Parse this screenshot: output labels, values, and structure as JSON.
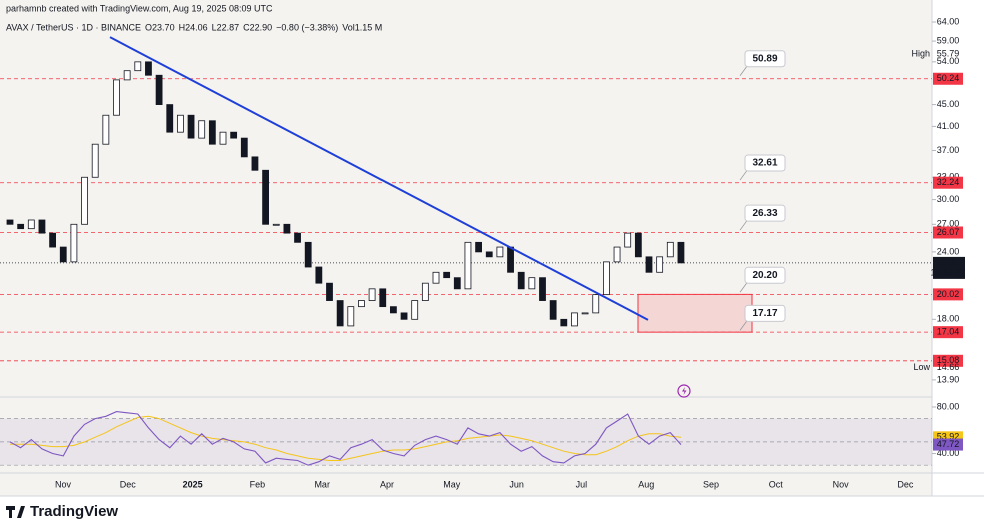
{
  "header": {
    "credit": "parhamnb created with TradingView.com, Aug 19, 2025 08:09 UTC",
    "symbol": "AVAX / TetherUS · 1D · BINANCE",
    "ohlc": [
      "O23.70",
      "H24.06",
      "L22.87",
      "C22.90",
      "−0.80 (−3.38%)",
      "Vol1.15 M"
    ]
  },
  "chart_data": {
    "type": "candlestick",
    "log_scale": true,
    "ylim": [
      13.2,
      66.8
    ],
    "yticks": [
      {
        "value": 64,
        "label": "64.00"
      },
      {
        "value": 59,
        "label": "59.00"
      },
      {
        "value": 54,
        "label": "54.00"
      },
      {
        "value": 45,
        "label": "45.00"
      },
      {
        "value": 41,
        "label": "41.00"
      },
      {
        "value": 37,
        "label": "37.00"
      },
      {
        "value": 33,
        "label": "33.00"
      },
      {
        "value": 30,
        "label": "30.00"
      },
      {
        "value": 27,
        "label": "27.00"
      },
      {
        "value": 24,
        "label": "24.00"
      },
      {
        "value": 18,
        "label": "18.00"
      },
      {
        "value": 13.9,
        "label": "13.90"
      }
    ],
    "categories": [
      "Nov",
      "Dec",
      "2025",
      "Feb",
      "Mar",
      "Apr",
      "May",
      "Jun",
      "Jul",
      "Aug",
      "Sep",
      "Oct",
      "Nov",
      "Dec"
    ],
    "up_color": "#ffffff",
    "down_color": "#131722",
    "open": [
      27.5,
      27,
      26.5,
      27.5,
      26,
      24.5,
      23,
      27,
      33,
      38,
      43,
      50,
      52,
      54,
      51,
      45,
      40,
      43,
      39,
      42,
      38,
      40,
      39,
      36,
      34,
      27,
      27,
      26,
      25,
      22.5,
      21,
      19.5,
      17.5,
      19,
      19.5,
      20.5,
      19,
      18.5,
      18,
      19.5,
      21,
      22,
      21.5,
      20.5,
      25,
      24,
      23.5,
      24.5,
      22,
      20.5,
      21.5,
      19.5,
      18,
      17.5,
      18.5,
      18.5,
      20,
      23,
      24.5,
      26,
      23.5,
      22,
      23.5,
      25
    ],
    "high": {
      "name": "High",
      "value": 55.79,
      "label": "55.79"
    },
    "low": {
      "name": "Low",
      "value": 14.66,
      "label": "14.66"
    },
    "close": [
      27,
      26.5,
      27.5,
      26,
      24.5,
      23,
      27,
      33,
      38,
      43,
      50,
      52,
      54,
      51,
      45,
      40,
      43,
      39,
      42,
      38,
      40,
      39,
      36,
      34,
      27,
      27,
      26,
      25,
      22.5,
      21,
      19.5,
      17.5,
      19,
      19.5,
      20.5,
      19,
      18.5,
      18,
      19.5,
      21,
      22,
      21.5,
      20.5,
      25,
      24,
      23.5,
      24.5,
      22,
      20.5,
      21.5,
      19.5,
      18,
      17.5,
      18.5,
      18.5,
      20,
      23,
      24.5,
      26,
      23.5,
      22,
      23.5,
      25,
      22.9
    ],
    "levels": [
      {
        "value": 50.24,
        "label": "50.24"
      },
      {
        "value": 32.24,
        "label": "32.24"
      },
      {
        "value": 26.07,
        "label": "26.07"
      },
      {
        "value": 20.02,
        "label": "20.02"
      },
      {
        "value": 17.04,
        "label": "17.04"
      },
      {
        "value": 15.08,
        "label": "15.08"
      }
    ],
    "level_color": "#f23645",
    "annotations": [
      {
        "value": 50.89,
        "label": "50.89"
      },
      {
        "value": 32.61,
        "label": "32.61"
      },
      {
        "value": 26.33,
        "label": "26.33"
      },
      {
        "value": 20.2,
        "label": "20.20"
      },
      {
        "value": 17.17,
        "label": "17.17"
      }
    ],
    "trendline": {
      "from": 60,
      "to": 17.96,
      "color": "#1e3fd8"
    },
    "last_price": {
      "value": 22.9,
      "label": "22.90",
      "countdown": "15:50:07"
    },
    "rsi": {
      "ylim": [
        25,
        86
      ],
      "yticks": [
        {
          "value": 80,
          "label": "80.00"
        },
        {
          "value": 40,
          "label": "40.00"
        }
      ],
      "bands": [
        70,
        50,
        30
      ],
      "series": [
        {
          "color": "#7e57c2",
          "label": "47.72",
          "values": [
            50,
            45,
            52,
            44,
            40,
            38,
            55,
            65,
            70,
            72,
            76,
            75,
            74,
            62,
            52,
            45,
            55,
            48,
            57,
            48,
            53,
            50,
            44,
            42,
            32,
            36,
            35,
            34,
            30,
            33,
            38,
            35,
            45,
            48,
            52,
            43,
            40,
            38,
            47,
            52,
            55,
            52,
            48,
            62,
            57,
            55,
            58,
            48,
            42,
            46,
            38,
            33,
            32,
            38,
            40,
            48,
            62,
            68,
            74,
            55,
            48,
            55,
            58,
            47.72
          ]
        },
        {
          "color": "#f5c518",
          "label": "53.92",
          "values": [
            48,
            48,
            48,
            47,
            46,
            46,
            47,
            50,
            54,
            58,
            63,
            67,
            71,
            72,
            70,
            66,
            62,
            58,
            55,
            53,
            52,
            51,
            50,
            48,
            45,
            43,
            40,
            38,
            36,
            35,
            34,
            34,
            36,
            38,
            40,
            42,
            43,
            43,
            44,
            46,
            48,
            50,
            51,
            53,
            54,
            55,
            56,
            55,
            53,
            51,
            48,
            45,
            42,
            40,
            39,
            39,
            42,
            46,
            51,
            55,
            57,
            57,
            55,
            53.92
          ]
        }
      ]
    }
  },
  "footer": {
    "brand": "TradingView"
  }
}
